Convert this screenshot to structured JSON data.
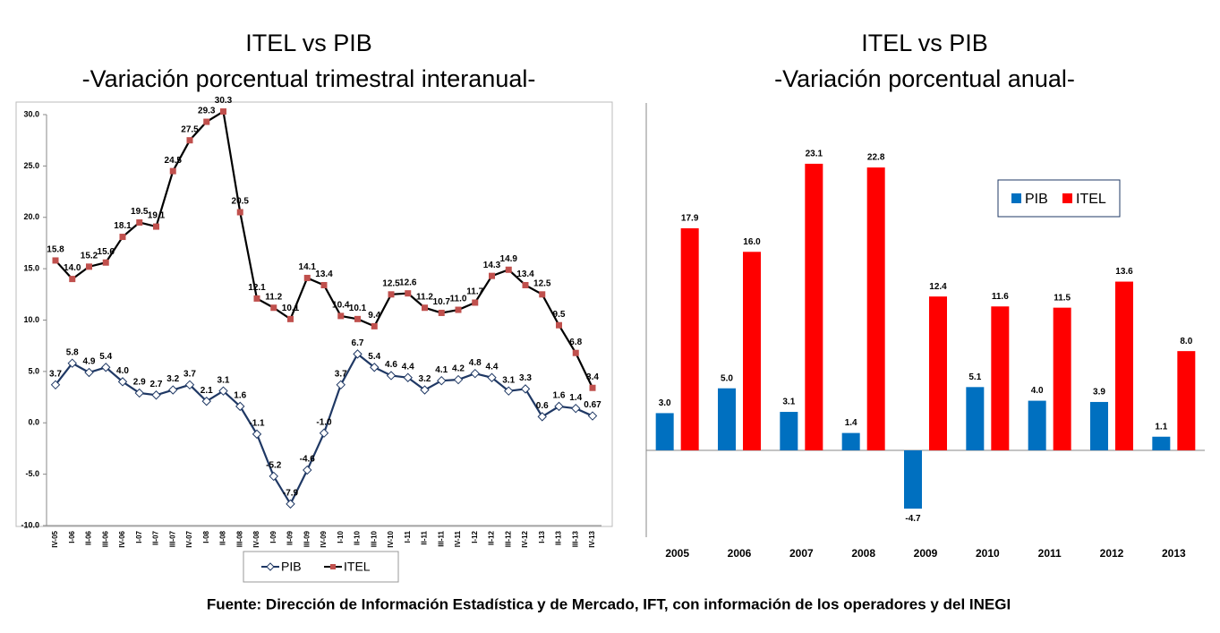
{
  "chart_data": [
    {
      "type": "line",
      "title": "ITEL vs PIB",
      "subtitle": "-Variación porcentual trimestral interanual-",
      "categories": [
        "IV-05",
        "I-06",
        "II-06",
        "III-06",
        "IV-06",
        "I-07",
        "II-07",
        "III-07",
        "IV-07",
        "I-08",
        "II-08",
        "III-08",
        "IV-08",
        "I-09",
        "II-09",
        "III-09",
        "IV-09",
        "I-10",
        "II-10",
        "III-10",
        "IV-10",
        "I-11",
        "II-11",
        "III-11",
        "IV-11",
        "I-12",
        "II-12",
        "III-12",
        "IV-12",
        "I-13",
        "II-13",
        "III-13",
        "IV-13"
      ],
      "series": [
        {
          "name": "PIB",
          "color": "#1f3864",
          "marker_color": "#ffffff",
          "marker": "diamond",
          "values": [
            3.7,
            5.8,
            4.9,
            5.4,
            4.0,
            2.9,
            2.7,
            3.2,
            3.7,
            2.1,
            3.1,
            1.6,
            -1.1,
            -5.2,
            -7.9,
            -4.6,
            -1.0,
            3.7,
            6.7,
            5.4,
            4.6,
            4.4,
            3.2,
            4.1,
            4.2,
            4.8,
            4.4,
            3.1,
            3.3,
            0.6,
            1.6,
            1.4,
            0.67
          ],
          "value_labels": [
            "3.7",
            "5.8",
            "4.9",
            "5.4",
            "4.0",
            "2.9",
            "2.7",
            "3.2",
            "3.7",
            "2.1",
            "3.1",
            "1.6",
            "-1.1",
            "-5.2",
            "-7.9",
            "-4.6",
            "-1.0",
            "3.7",
            "6.7",
            "5.4",
            "4.6",
            "4.4",
            "3.2",
            "4.1",
            "4.2",
            "4.8",
            "4.4",
            "3.1",
            "3.3",
            "0.6",
            "1.6",
            "1.4",
            "0.67"
          ]
        },
        {
          "name": "ITEL",
          "color": "#000000",
          "marker_color": "#c0504d",
          "marker": "square",
          "values": [
            15.8,
            14.0,
            15.2,
            15.6,
            18.1,
            19.5,
            19.1,
            24.5,
            27.5,
            29.3,
            30.3,
            20.5,
            12.1,
            11.2,
            10.1,
            14.1,
            13.4,
            10.4,
            10.1,
            9.4,
            12.5,
            12.6,
            11.2,
            10.7,
            11.0,
            11.7,
            14.3,
            14.9,
            13.4,
            12.5,
            9.5,
            6.8,
            3.4
          ],
          "value_labels": [
            "15.8",
            "14.0",
            "15.2",
            "15.6",
            "18.1",
            "19.5",
            "19.1",
            "24.5",
            "27.5",
            "29.3",
            "30.3",
            "20.5",
            "12.1",
            "11.2",
            "10.1",
            "14.1",
            "13.4",
            "10.4",
            "10.1",
            "9.4",
            "12.5",
            "12.6",
            "11.2",
            "10.7",
            "11.0",
            "11.7",
            "14.3",
            "14.9",
            "13.4",
            "12.5",
            "9.5",
            "6.8",
            "3.4"
          ]
        }
      ],
      "ylim": [
        -10,
        30
      ],
      "yticks": [
        {
          "value": -10,
          "label": "-10.0"
        },
        {
          "value": -5,
          "label": "-5.0"
        },
        {
          "value": 0,
          "label": "0.0"
        },
        {
          "value": 5,
          "label": "5.0"
        },
        {
          "value": 10,
          "label": "10.0"
        },
        {
          "value": 15,
          "label": "15.0"
        },
        {
          "value": 20,
          "label": "20.0"
        },
        {
          "value": 25,
          "label": "25.0"
        },
        {
          "value": 30,
          "label": "30.0"
        }
      ],
      "legend": "bottom"
    },
    {
      "type": "bar",
      "title": "ITEL vs PIB",
      "subtitle": "-Variación porcentual anual-",
      "categories": [
        "2005",
        "2006",
        "2007",
        "2008",
        "2009",
        "2010",
        "2011",
        "2012",
        "2013"
      ],
      "series": [
        {
          "name": "PIB",
          "color": "#0070c0",
          "values": [
            3.0,
            5.0,
            3.1,
            1.4,
            -4.7,
            5.1,
            4.0,
            3.9,
            1.1
          ],
          "value_labels": [
            "3.0",
            "5.0",
            "3.1",
            "1.4",
            "-4.7",
            "5.1",
            "4.0",
            "3.9",
            "1.1"
          ]
        },
        {
          "name": "ITEL",
          "color": "#ff0000",
          "values": [
            17.9,
            16.0,
            23.1,
            22.8,
            12.4,
            11.6,
            11.5,
            13.6,
            8.0
          ],
          "value_labels": [
            "17.9",
            "16.0",
            "23.1",
            "22.8",
            "12.4",
            "11.6",
            "11.5",
            "13.6",
            "8.0"
          ]
        }
      ],
      "ylim": [
        -7,
        28
      ],
      "legend": "upper right"
    }
  ],
  "source": "Fuente: Dirección de Información Estadística y de Mercado, IFT, con información de los operadores y del INEGI"
}
